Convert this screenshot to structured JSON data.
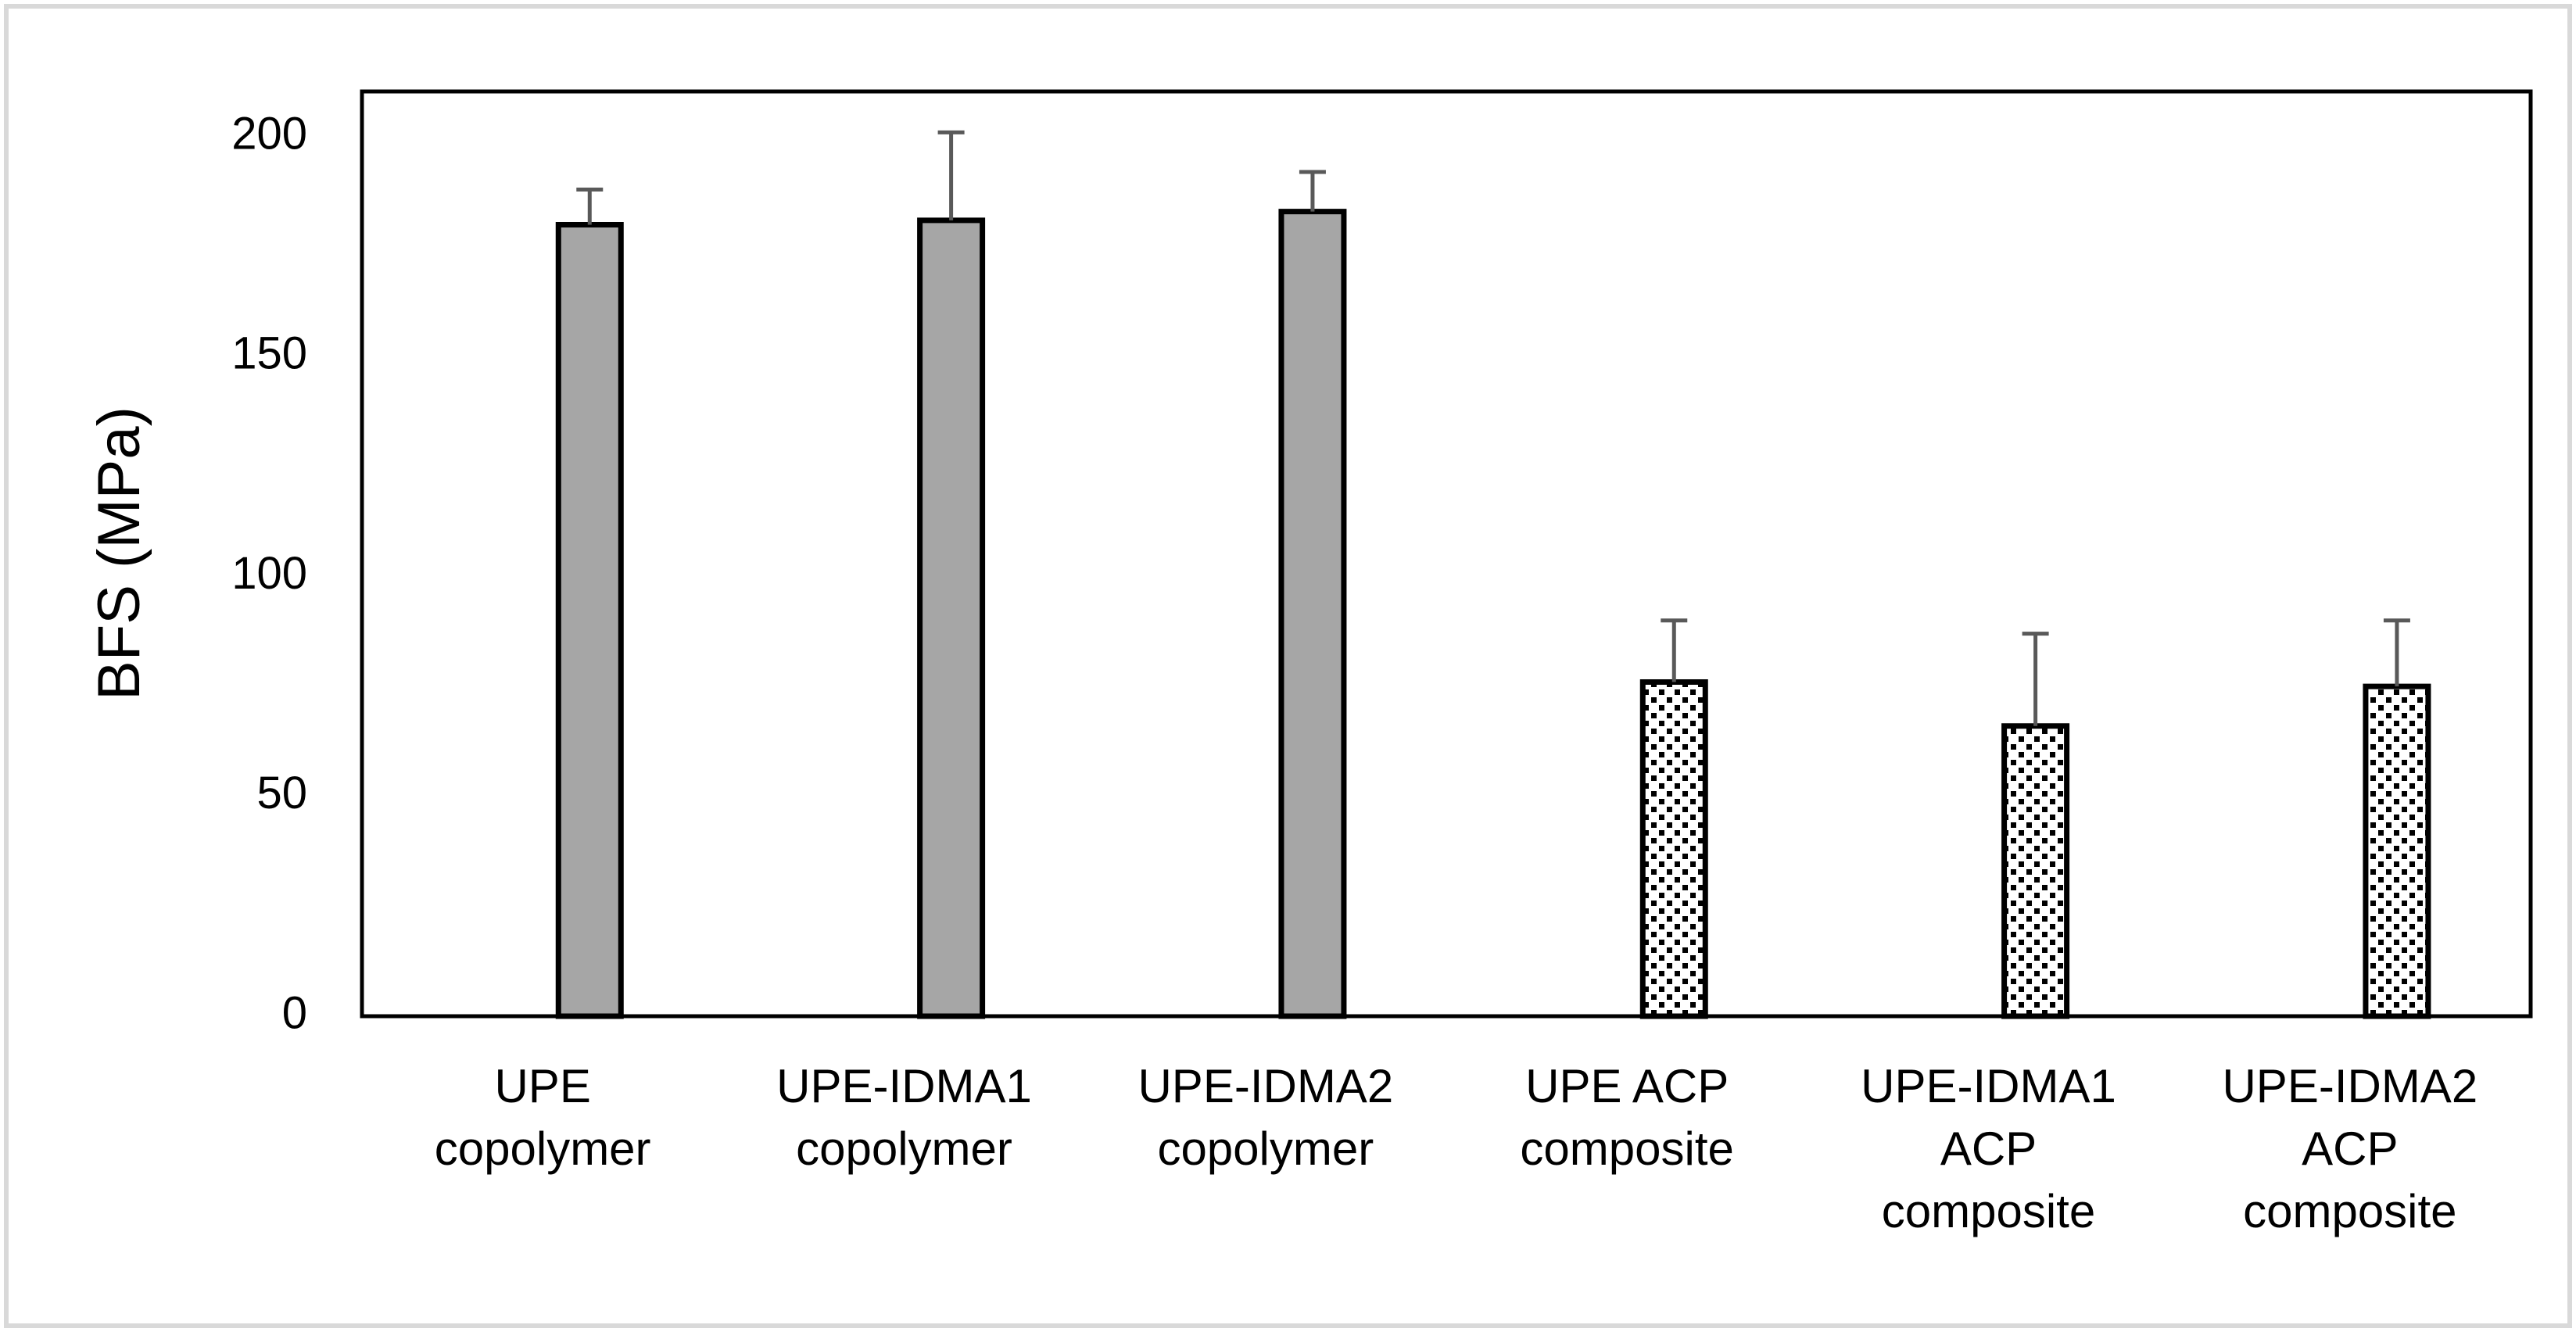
{
  "chart_data": {
    "type": "bar",
    "title": "",
    "xlabel": "",
    "ylabel": "BFS (MPa)",
    "ylim": [
      0,
      200
    ],
    "yticks": [
      0,
      50,
      100,
      150,
      200
    ],
    "grid": false,
    "legend": "none",
    "categories": [
      [
        "UPE",
        "copolymer"
      ],
      [
        "UPE-IDMA1",
        "copolymer"
      ],
      [
        "UPE-IDMA2",
        "copolymer"
      ],
      [
        "UPE ACP",
        "composite"
      ],
      [
        "UPE-IDMA1",
        "ACP",
        "composite"
      ],
      [
        "UPE-IDMA2",
        "ACP",
        "composite"
      ]
    ],
    "values": [
      180,
      181,
      183,
      76,
      66,
      75
    ],
    "error_plus": [
      8,
      20,
      9,
      14,
      21,
      15
    ],
    "fills": [
      "solid",
      "solid",
      "solid",
      "dotted",
      "dotted",
      "dotted"
    ],
    "colors": {
      "solid_bar": "#a6a6a6",
      "pattern_bg": "#ffffff",
      "pattern_dot": "#000000",
      "outline": "#000000",
      "error_bar": "#595959",
      "frame_border": "#d9d9d9"
    }
  }
}
